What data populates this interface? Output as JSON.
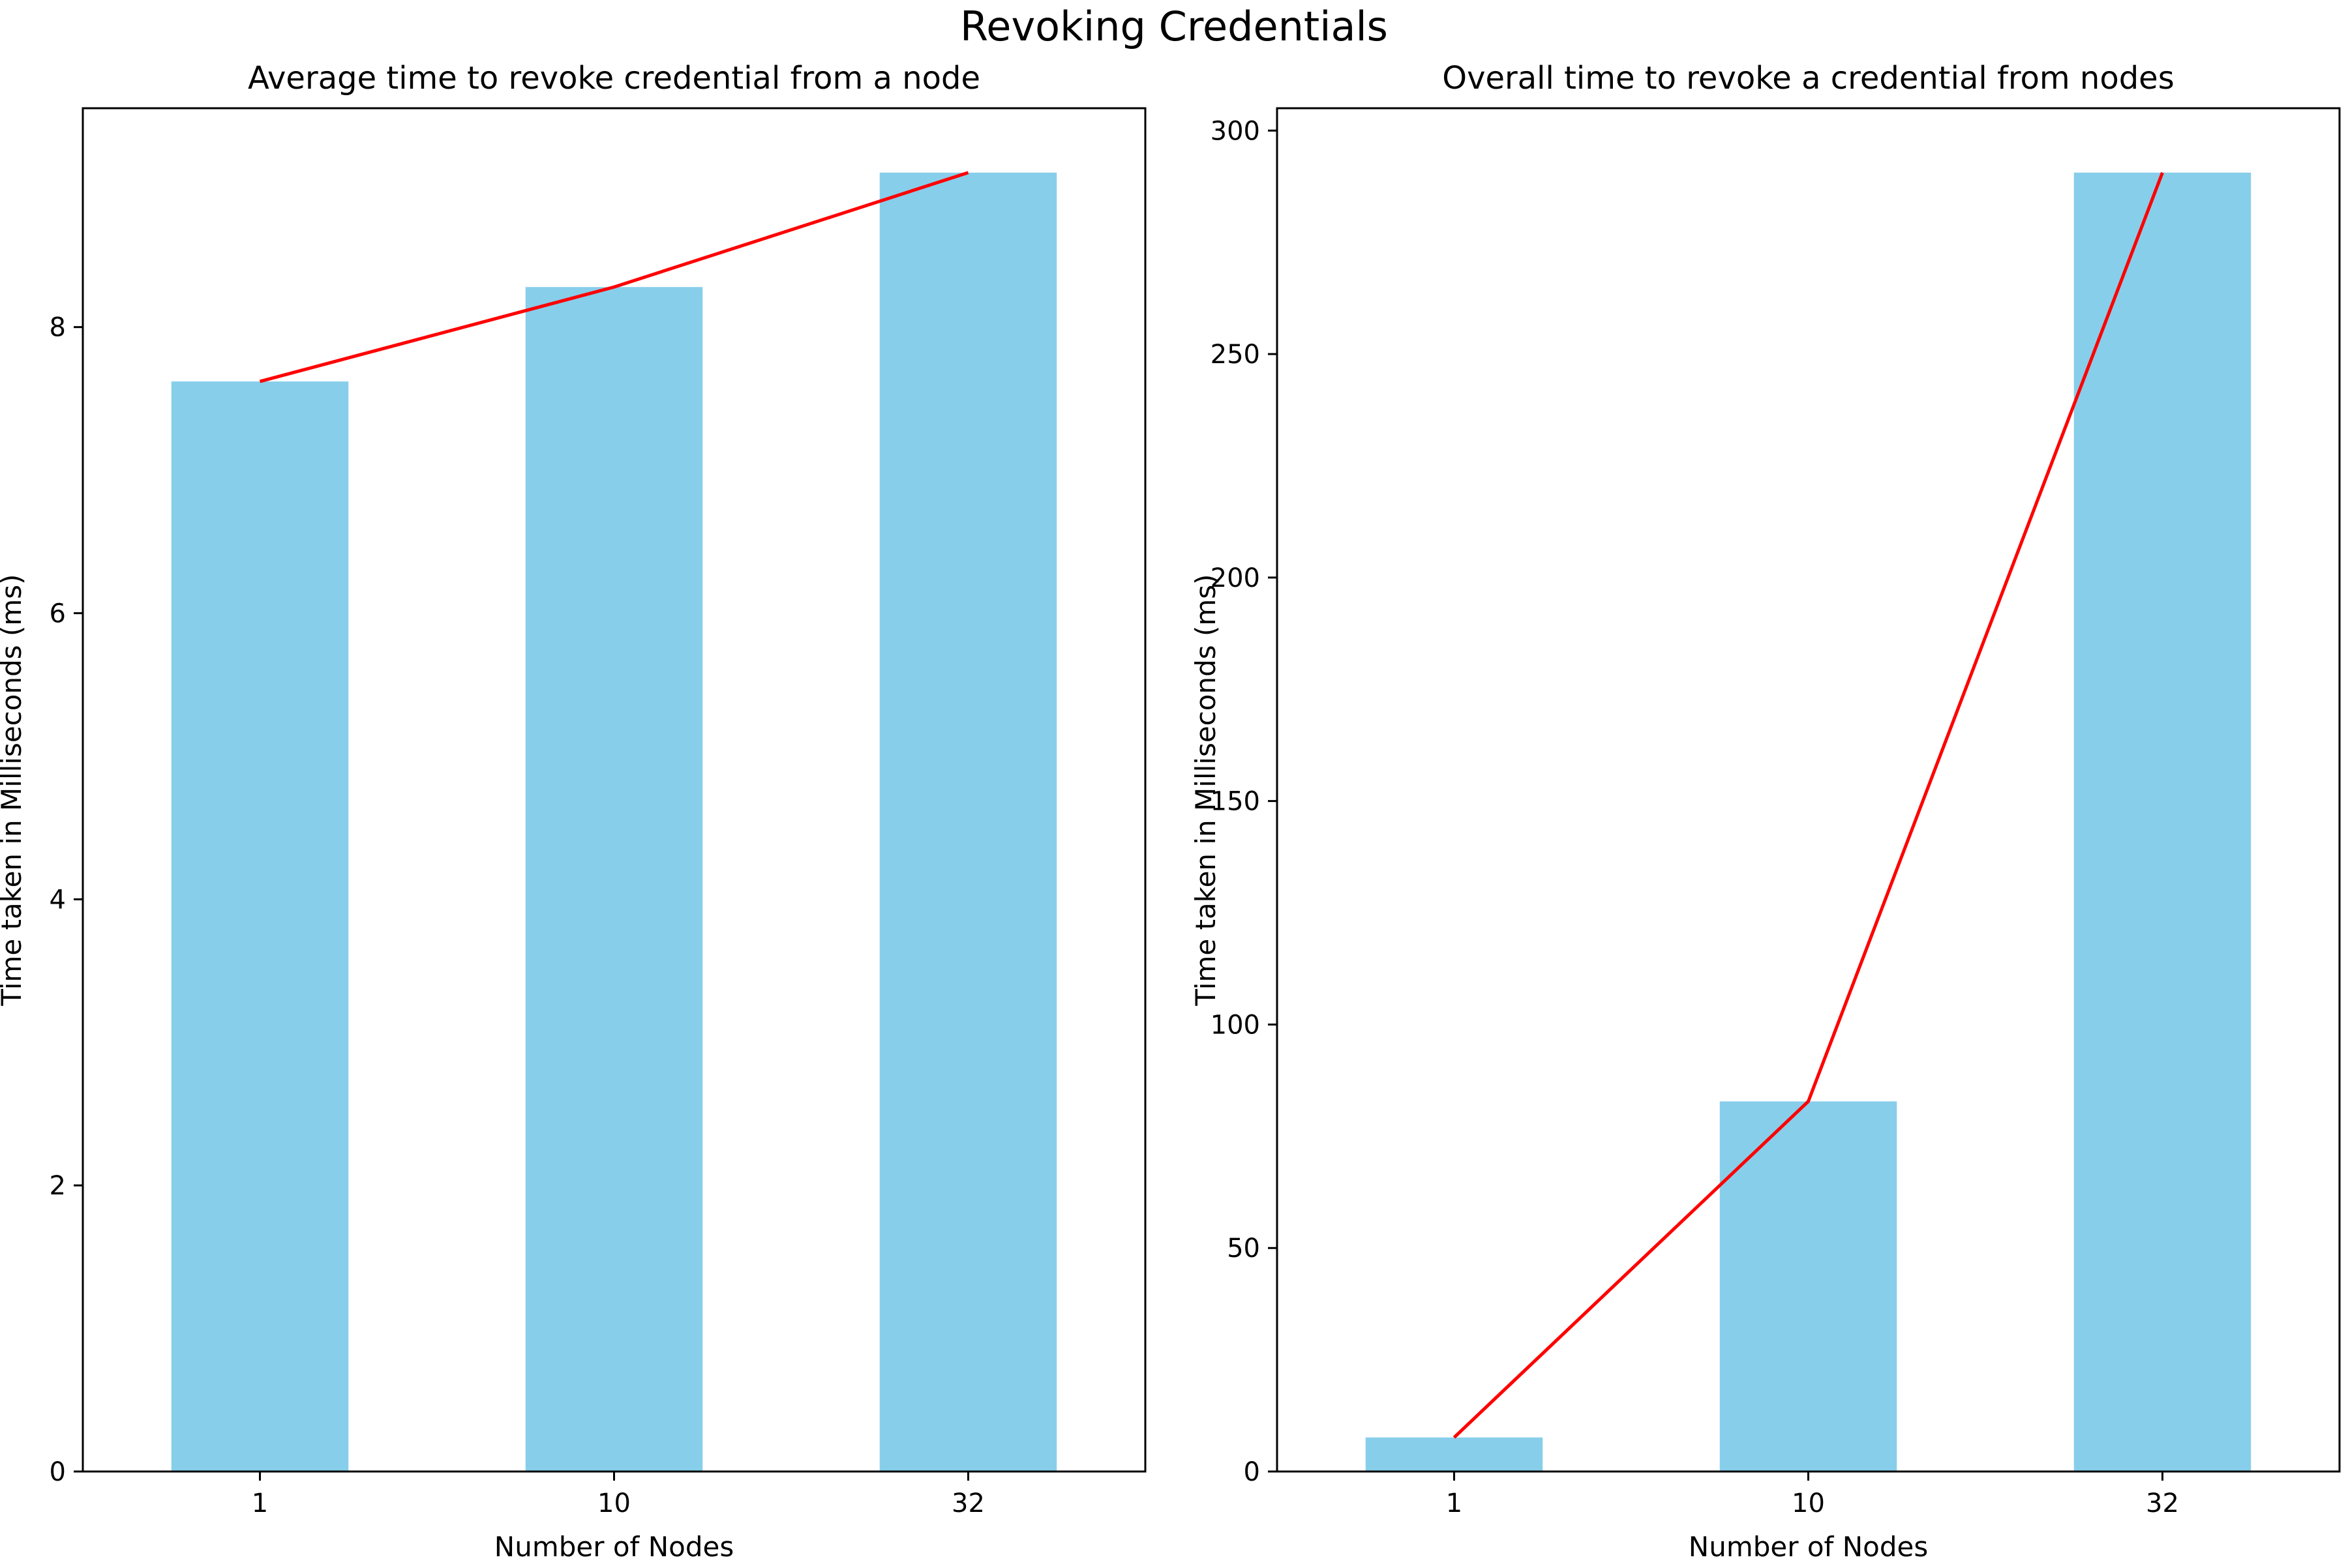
{
  "figure": {
    "title": "Revoking Credentials"
  },
  "chart_data": [
    {
      "type": "bar",
      "title": "Average time to revoke credential from a node",
      "xlabel": "Number of Nodes",
      "ylabel": "Time taken in Milliseconds (ms)",
      "categories": [
        "1",
        "10",
        "32"
      ],
      "values": [
        7.62,
        8.28,
        9.08
      ],
      "line_values": [
        7.62,
        8.28,
        9.08
      ],
      "ylim": [
        0,
        9.53
      ],
      "yticks": [
        0,
        2,
        4,
        6,
        8
      ],
      "grid": false,
      "bar_color": "#87CEEB",
      "line_color": "#FF0000"
    },
    {
      "type": "bar",
      "title": "Overall time to revoke a credential from nodes",
      "xlabel": "Number of Nodes",
      "ylabel": "Time taken in Milliseconds (ms)",
      "categories": [
        "1",
        "10",
        "32"
      ],
      "values": [
        7.62,
        82.8,
        290.6
      ],
      "line_values": [
        7.62,
        82.8,
        290.6
      ],
      "ylim": [
        0,
        305
      ],
      "yticks": [
        0,
        50,
        100,
        150,
        200,
        250,
        300
      ],
      "grid": false,
      "bar_color": "#87CEEB",
      "line_color": "#FF0000"
    }
  ]
}
